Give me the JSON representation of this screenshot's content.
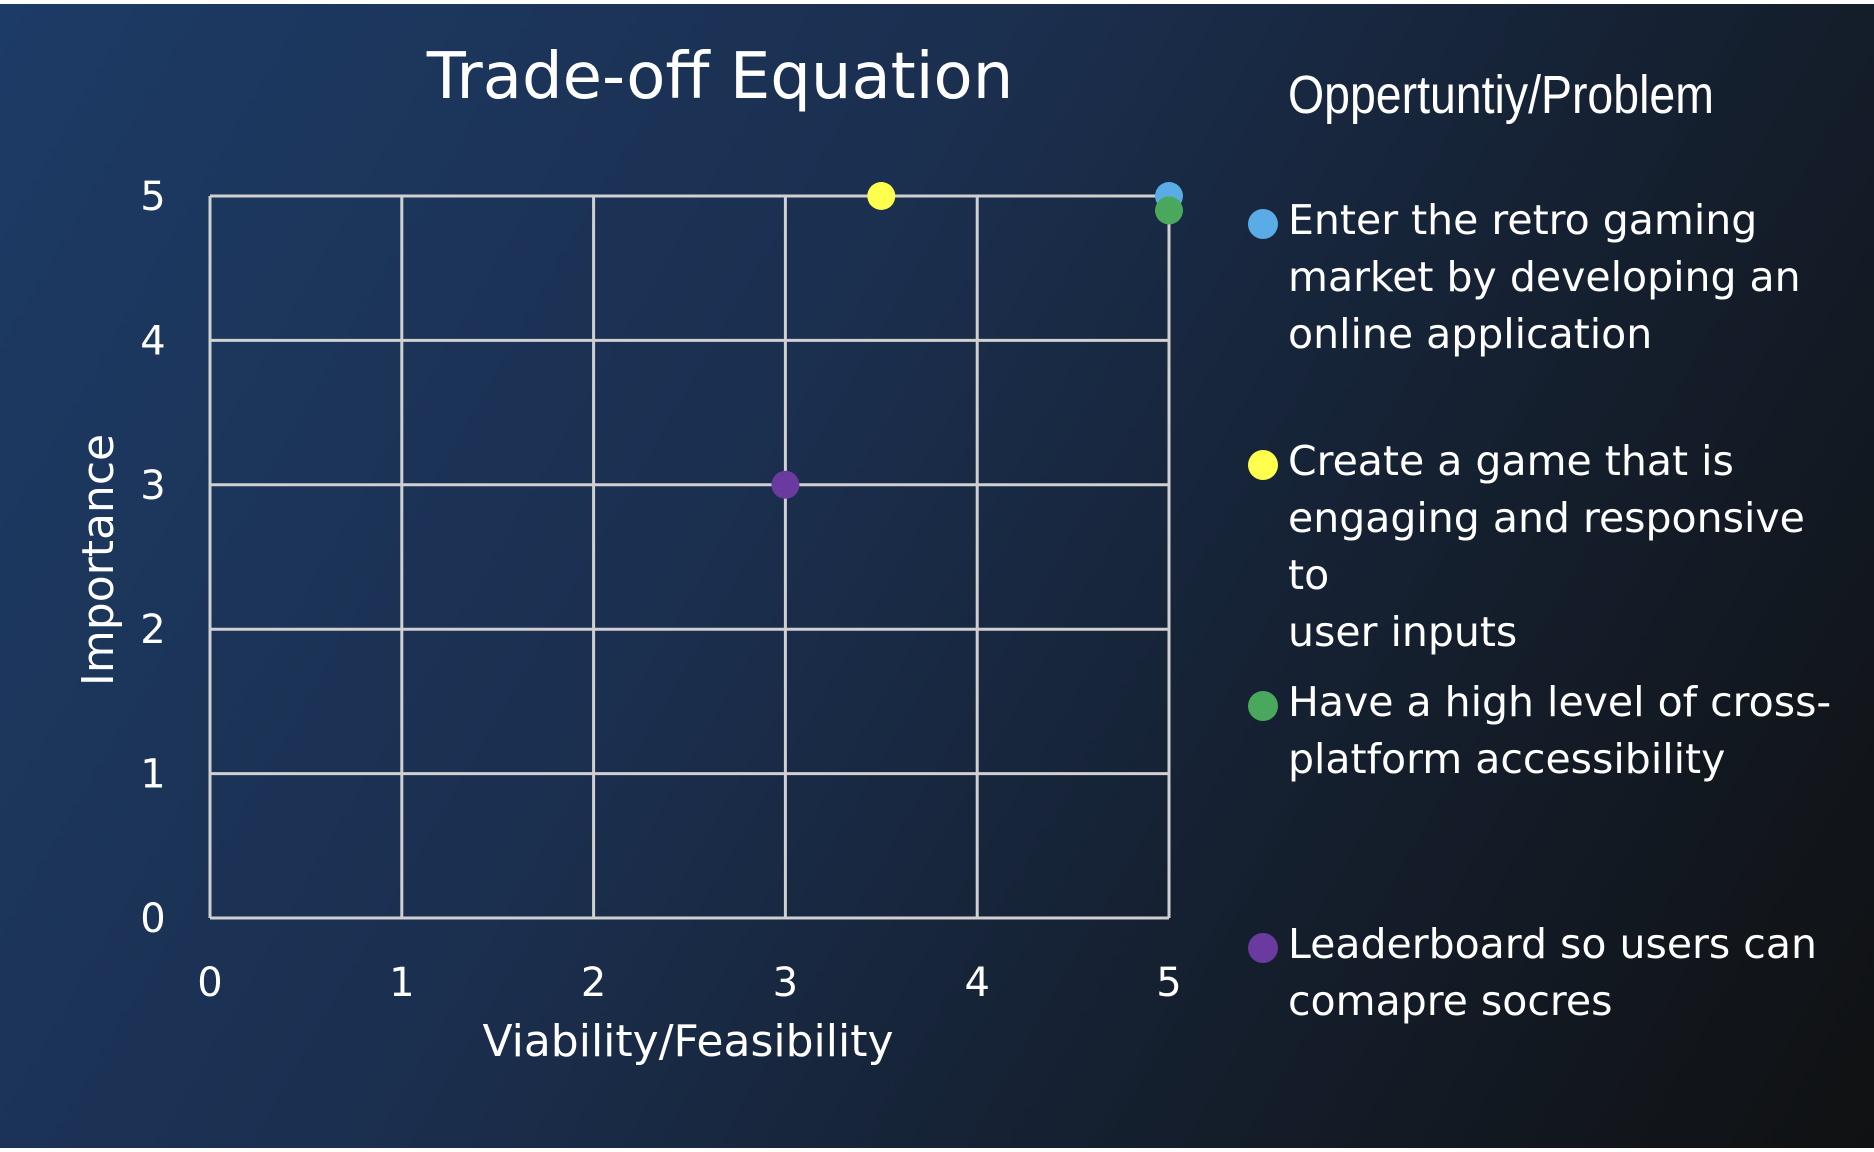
{
  "chart_data": {
    "type": "scatter",
    "title": "Trade-off Equation",
    "xlabel": "Viability/Feasibility",
    "ylabel": "Importance",
    "xlim": [
      0,
      5
    ],
    "ylim": [
      0,
      5
    ],
    "xticks": [
      "0",
      "1",
      "2",
      "3",
      "4",
      "5"
    ],
    "yticks": [
      "0",
      "1",
      "2",
      "3",
      "4",
      "5"
    ],
    "grid": true,
    "legend_placement": "right",
    "legend_title": "Oppertuntiy/Problem",
    "series": [
      {
        "name": "Enter the retro gaming market by developing an online application",
        "x": 5,
        "y": 5,
        "color": "#5aace6"
      },
      {
        "name": "Create a game that is engaging and responsive to user inputs",
        "x": 3.5,
        "y": 5,
        "color": "#ffff4d"
      },
      {
        "name": "Have a high level of cross-platform accessibility",
        "x": 5,
        "y": 4.9,
        "color": "#4aa85c"
      },
      {
        "name": "Leaderboard so users can comapre socres",
        "x": 3,
        "y": 3,
        "color": "#6a3a9e"
      }
    ]
  },
  "legend_text_lines": [
    "Enter the retro gaming\nmarket by developing an\nonline application",
    "Create a game that is\nengaging and responsive to\nuser inputs",
    "Have a high level of cross-\nplatform accessibility",
    "Leaderboard so users can\ncomapre socres"
  ]
}
